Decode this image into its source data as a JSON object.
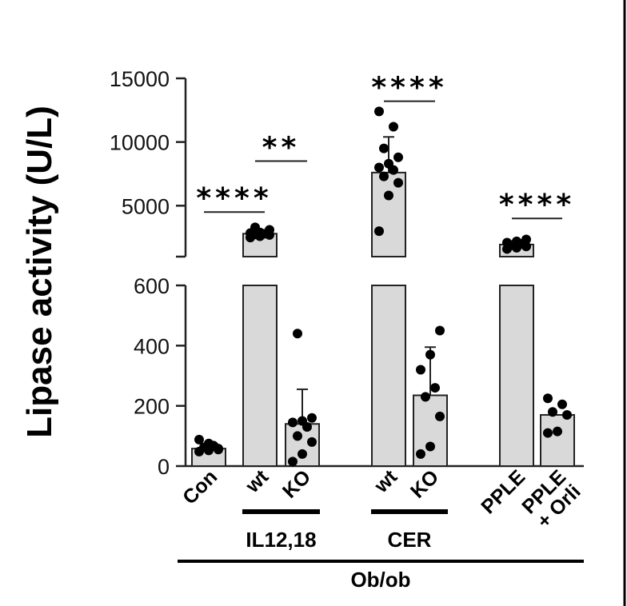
{
  "chart_data": {
    "type": "bar",
    "ylabel": "Lipase activity (U/L)",
    "y_axis_broken": true,
    "ylim_lower": [
      0,
      600
    ],
    "ylim_upper": [
      1000,
      15000
    ],
    "yticks_lower": [
      "0",
      "200",
      "400",
      "600"
    ],
    "yticks_upper": [
      "5000",
      "10000",
      "15000"
    ],
    "categories": [
      "Con",
      "wt",
      "KO",
      "wt",
      "KO",
      "PPLE",
      "PPLE\n+ Orli"
    ],
    "category_label_lines": [
      [
        "Con"
      ],
      [
        "wt"
      ],
      [
        "KO"
      ],
      [
        "wt"
      ],
      [
        "KO"
      ],
      [
        "PPLE"
      ],
      [
        "PPLE",
        "+ Orli"
      ]
    ],
    "values": [
      58,
      2800,
      140,
      7600,
      235,
      1950,
      170
    ],
    "error_upper": [
      null,
      null,
      255,
      10400,
      395,
      null,
      null
    ],
    "points": [
      [
        48,
        52,
        58,
        62,
        68,
        88,
        75,
        55
      ],
      [
        2500,
        2600,
        2700,
        2750,
        2800,
        2850,
        2900,
        3100,
        3300
      ],
      [
        15,
        40,
        80,
        100,
        130,
        145,
        150,
        160,
        440
      ],
      [
        3000,
        5800,
        6800,
        7300,
        7800,
        8000,
        8300,
        8800,
        9500,
        11200,
        12400
      ],
      [
        40,
        65,
        165,
        230,
        260,
        320,
        370,
        450
      ],
      [
        1600,
        1700,
        1800,
        1900,
        2000,
        2100,
        2200,
        2350
      ],
      [
        110,
        115,
        170,
        180,
        205,
        225
      ]
    ],
    "bar_color": "#d9d9d9",
    "significance": [
      {
        "from": 0,
        "to": 1,
        "label": "****",
        "y_value": 4500,
        "y_label": 5700
      },
      {
        "from": 1,
        "to": 2,
        "label": "**",
        "y_value": 8500,
        "y_label": 9700
      },
      {
        "from": 3,
        "to": 4,
        "label": "****",
        "y_value": 13200,
        "y_label": 14400
      },
      {
        "from": 5,
        "to": 6,
        "label": "****",
        "y_value": 4000,
        "y_label": 5200
      }
    ],
    "groups": [
      {
        "label": "IL12,18",
        "from": 1,
        "to": 2
      },
      {
        "label": "CER",
        "from": 3,
        "to": 4
      },
      {
        "label": "Ob/ob",
        "from": 0,
        "to": 6
      }
    ]
  }
}
